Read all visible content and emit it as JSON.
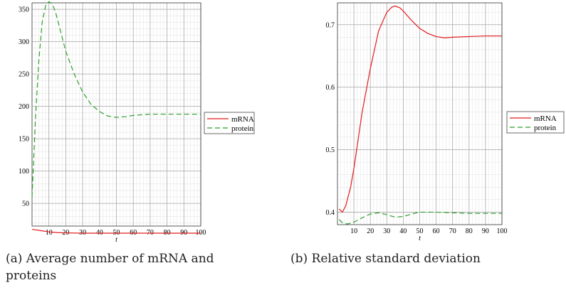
{
  "chart_data": [
    {
      "type": "line",
      "caption": "(a) Average number of mRNA and proteins",
      "xlabel": "t",
      "ylabel": "",
      "xlim": [
        0,
        100
      ],
      "ylim": [
        15,
        360
      ],
      "xticks": [
        10,
        20,
        30,
        40,
        50,
        60,
        70,
        80,
        90,
        100
      ],
      "yticks": [
        50,
        100,
        150,
        200,
        250,
        300,
        350
      ],
      "grid": true,
      "legend_position": "right",
      "series": [
        {
          "name": "mRNA",
          "color": "#e31a1c",
          "dash": "solid",
          "x": [
            0,
            5,
            10,
            15,
            20,
            30,
            40,
            50,
            60,
            70,
            80,
            90,
            100
          ],
          "y": [
            10,
            8,
            6,
            5,
            4.5,
            4,
            4,
            4,
            4,
            4,
            4,
            4,
            4
          ]
        },
        {
          "name": "protein",
          "color": "#2ca02c",
          "dash": "dashed",
          "x": [
            0,
            2,
            4,
            6,
            8,
            10,
            12,
            14,
            16,
            18,
            20,
            25,
            30,
            35,
            40,
            45,
            50,
            55,
            60,
            70,
            80,
            90,
            100
          ],
          "y": [
            60,
            180,
            270,
            330,
            355,
            362,
            358,
            345,
            325,
            305,
            285,
            250,
            222,
            203,
            192,
            185,
            183,
            184,
            186,
            188,
            188,
            188,
            188
          ]
        }
      ]
    },
    {
      "type": "line",
      "caption": "(b) Relative standard deviation",
      "xlabel": "t",
      "ylabel": "",
      "xlim": [
        0,
        100
      ],
      "ylim": [
        0.38,
        0.735
      ],
      "xticks": [
        10,
        20,
        30,
        40,
        50,
        60,
        70,
        80,
        90,
        100
      ],
      "yticks": [
        0.4,
        0.5,
        0.6,
        0.7
      ],
      "grid": true,
      "legend_position": "right",
      "series": [
        {
          "name": "mRNA",
          "color": "#e31a1c",
          "dash": "solid",
          "x": [
            1,
            3,
            5,
            8,
            10,
            15,
            20,
            25,
            30,
            33,
            35,
            38,
            40,
            45,
            50,
            55,
            60,
            65,
            70,
            80,
            90,
            100
          ],
          "y": [
            0.405,
            0.4,
            0.41,
            0.44,
            0.47,
            0.56,
            0.63,
            0.69,
            0.72,
            0.728,
            0.73,
            0.727,
            0.722,
            0.707,
            0.694,
            0.686,
            0.681,
            0.679,
            0.68,
            0.681,
            0.682,
            0.682
          ]
        },
        {
          "name": "protein",
          "color": "#2ca02c",
          "dash": "dashed",
          "x": [
            1,
            3,
            6,
            10,
            15,
            20,
            25,
            30,
            35,
            40,
            45,
            50,
            55,
            60,
            70,
            80,
            90,
            100
          ],
          "y": [
            0.388,
            0.383,
            0.381,
            0.384,
            0.391,
            0.397,
            0.399,
            0.396,
            0.392,
            0.393,
            0.397,
            0.4,
            0.4,
            0.4,
            0.399,
            0.398,
            0.398,
            0.398
          ]
        }
      ]
    }
  ]
}
